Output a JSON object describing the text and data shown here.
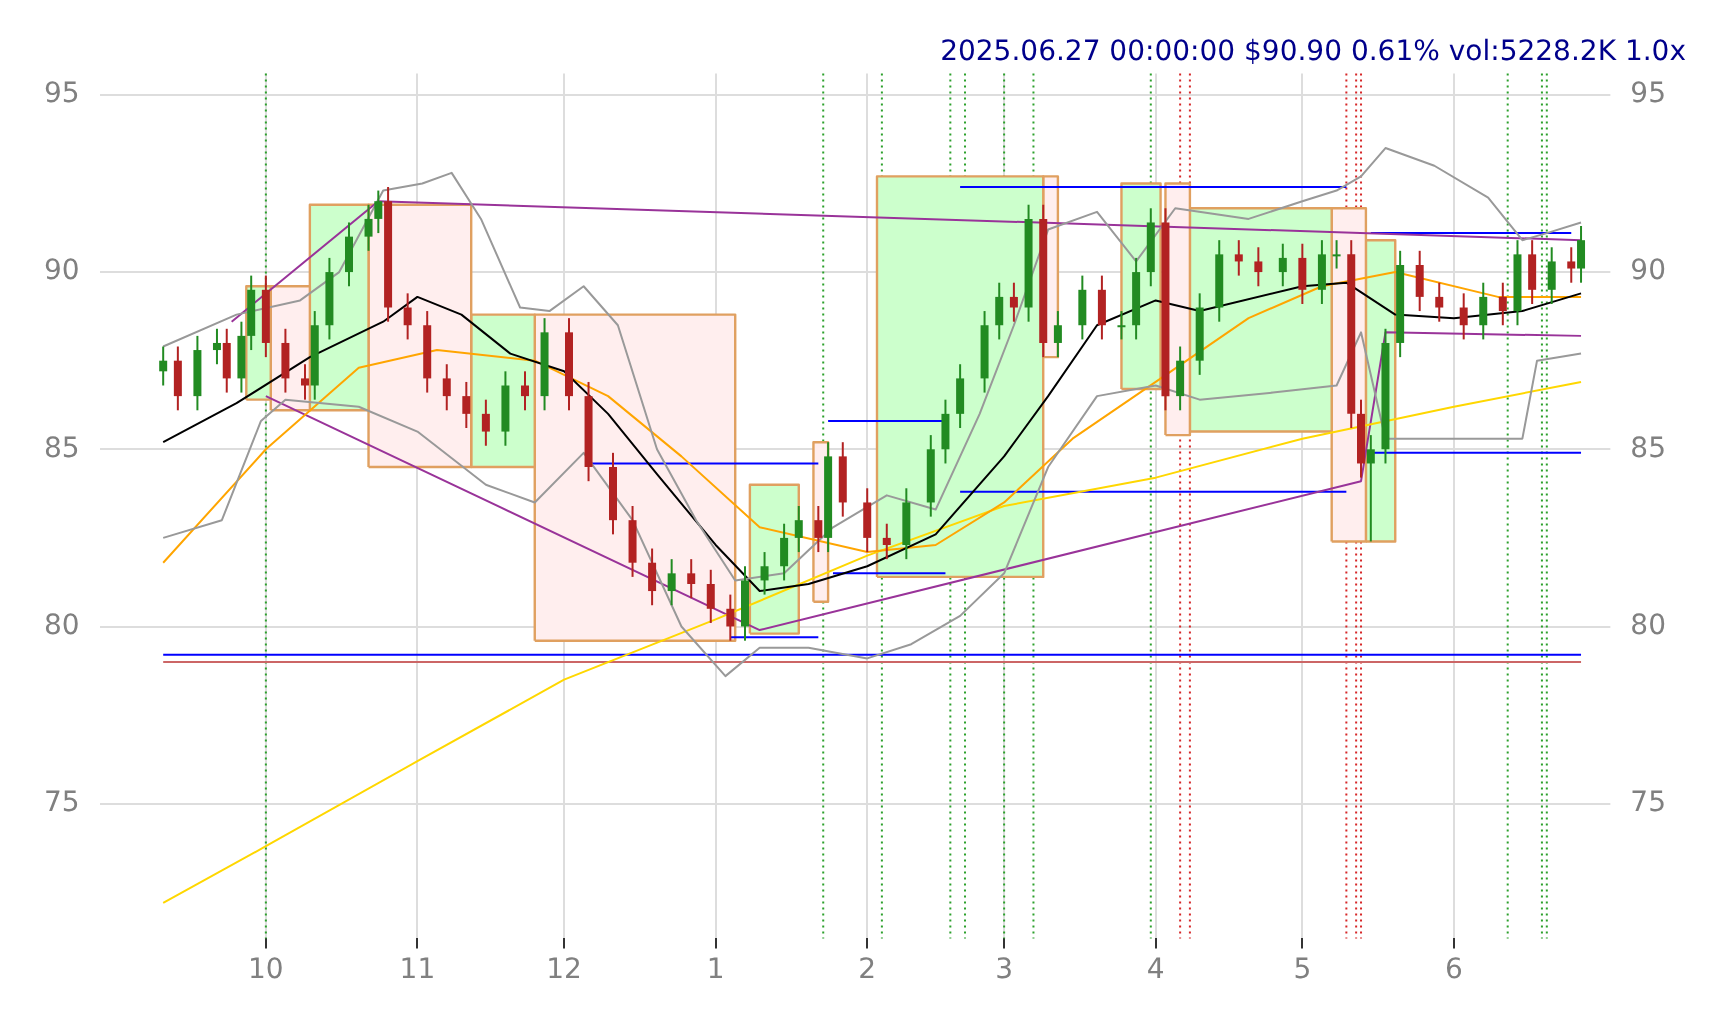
{
  "chart_data": {
    "type": "candlestick",
    "title": "2025.06.27 00:00:00 $90.90 0.61% vol:5228.2K 1.0x",
    "x": [
      "2024-09-10",
      "2024-09-13",
      "2024-09-17",
      "2024-09-21",
      "2024-09-23",
      "2024-09-26",
      "2024-09-28",
      "2024-10-01",
      "2024-10-05",
      "2024-10-09",
      "2024-10-11",
      "2024-10-14",
      "2024-10-18",
      "2024-10-22",
      "2024-10-24",
      "2024-10-26",
      "2024-10-30",
      "2024-11-03",
      "2024-11-07",
      "2024-11-11",
      "2024-11-15",
      "2024-11-19",
      "2024-11-23",
      "2024-11-27",
      "2024-12-02",
      "2024-12-06",
      "2024-12-11",
      "2024-12-15",
      "2024-12-19",
      "2024-12-23",
      "2024-12-27",
      "2024-12-31",
      "2025-01-04",
      "2025-01-07",
      "2025-01-11",
      "2025-01-15",
      "2025-01-18",
      "2025-01-22",
      "2025-01-24",
      "2025-01-27",
      "2025-02-01",
      "2025-02-05",
      "2025-02-09",
      "2025-02-14",
      "2025-02-17",
      "2025-02-20",
      "2025-02-25",
      "2025-02-28",
      "2025-03-03",
      "2025-03-06",
      "2025-03-09",
      "2025-03-12",
      "2025-03-17",
      "2025-03-21",
      "2025-03-25",
      "2025-03-28",
      "2025-03-31",
      "2025-04-03",
      "2025-04-06",
      "2025-04-10",
      "2025-04-14",
      "2025-04-18",
      "2025-04-22",
      "2025-04-27",
      "2025-05-01",
      "2025-05-05",
      "2025-05-08",
      "2025-05-11",
      "2025-05-13",
      "2025-05-15",
      "2025-05-18",
      "2025-05-21",
      "2025-05-25",
      "2025-05-29",
      "2025-06-03",
      "2025-06-07",
      "2025-06-11",
      "2025-06-14",
      "2025-06-17",
      "2025-06-21",
      "2025-06-25",
      "2025-06-27"
    ],
    "ohlc": [
      [
        87.2,
        87.9,
        86.8,
        87.5
      ],
      [
        87.5,
        87.9,
        86.1,
        86.5
      ],
      [
        86.5,
        88.2,
        86.1,
        87.8
      ],
      [
        87.8,
        88.4,
        87.4,
        88.0
      ],
      [
        88.0,
        88.4,
        86.6,
        87.0
      ],
      [
        87.0,
        88.6,
        86.6,
        88.2
      ],
      [
        88.2,
        89.9,
        87.8,
        89.5
      ],
      [
        89.5,
        89.9,
        87.6,
        88.0
      ],
      [
        88.0,
        88.4,
        86.6,
        87.0
      ],
      [
        87.0,
        87.4,
        86.4,
        86.8
      ],
      [
        86.8,
        88.9,
        86.4,
        88.5
      ],
      [
        88.5,
        90.4,
        88.1,
        90.0
      ],
      [
        90.0,
        91.4,
        89.6,
        91.0
      ],
      [
        91.0,
        91.9,
        90.6,
        91.5
      ],
      [
        91.5,
        92.3,
        91.1,
        92.0
      ],
      [
        92.0,
        92.4,
        88.6,
        89.0
      ],
      [
        89.0,
        89.4,
        88.1,
        88.5
      ],
      [
        88.5,
        88.9,
        86.6,
        87.0
      ],
      [
        87.0,
        87.4,
        86.1,
        86.5
      ],
      [
        86.5,
        86.9,
        85.6,
        86.0
      ],
      [
        86.0,
        86.4,
        85.1,
        85.5
      ],
      [
        85.5,
        87.2,
        85.1,
        86.8
      ],
      [
        86.8,
        87.2,
        86.1,
        86.5
      ],
      [
        86.5,
        88.7,
        86.1,
        88.3
      ],
      [
        88.3,
        88.7,
        86.1,
        86.5
      ],
      [
        86.5,
        86.9,
        84.1,
        84.5
      ],
      [
        84.5,
        84.9,
        82.6,
        83.0
      ],
      [
        83.0,
        83.4,
        81.4,
        81.8
      ],
      [
        81.8,
        82.2,
        80.6,
        81.0
      ],
      [
        81.0,
        81.9,
        80.6,
        81.5
      ],
      [
        81.5,
        81.9,
        80.8,
        81.2
      ],
      [
        81.2,
        81.6,
        80.1,
        80.5
      ],
      [
        80.5,
        80.9,
        79.6,
        80.0
      ],
      [
        80.0,
        81.7,
        79.6,
        81.3
      ],
      [
        81.3,
        82.1,
        80.9,
        81.7
      ],
      [
        81.7,
        82.9,
        81.3,
        82.5
      ],
      [
        82.5,
        83.4,
        82.1,
        83.0
      ],
      [
        83.0,
        83.4,
        82.1,
        82.5
      ],
      [
        82.5,
        85.2,
        82.1,
        84.8
      ],
      [
        84.8,
        85.2,
        83.1,
        83.5
      ],
      [
        83.5,
        83.9,
        82.1,
        82.5
      ],
      [
        82.5,
        82.9,
        81.9,
        82.3
      ],
      [
        82.3,
        83.9,
        81.9,
        83.5
      ],
      [
        83.5,
        85.4,
        83.1,
        85.0
      ],
      [
        85.0,
        86.4,
        84.6,
        86.0
      ],
      [
        86.0,
        87.4,
        85.6,
        87.0
      ],
      [
        87.0,
        88.9,
        86.6,
        88.5
      ],
      [
        88.5,
        89.7,
        88.1,
        89.3
      ],
      [
        89.3,
        89.7,
        88.6,
        89.0
      ],
      [
        89.0,
        91.9,
        88.6,
        91.5
      ],
      [
        91.5,
        91.9,
        87.6,
        88.0
      ],
      [
        88.0,
        88.9,
        87.6,
        88.5
      ],
      [
        88.5,
        89.9,
        88.1,
        89.5
      ],
      [
        89.5,
        89.9,
        88.1,
        88.5
      ],
      [
        88.5,
        88.9,
        88.1,
        88.5
      ],
      [
        88.5,
        90.4,
        88.1,
        90.0
      ],
      [
        90.0,
        91.8,
        89.6,
        91.4
      ],
      [
        91.4,
        91.8,
        86.1,
        86.5
      ],
      [
        86.5,
        87.9,
        86.1,
        87.5
      ],
      [
        87.5,
        89.4,
        87.1,
        89.0
      ],
      [
        89.0,
        90.9,
        88.6,
        90.5
      ],
      [
        90.5,
        90.9,
        89.9,
        90.3
      ],
      [
        90.3,
        90.7,
        89.6,
        90.0
      ],
      [
        90.0,
        90.8,
        89.6,
        90.4
      ],
      [
        90.4,
        90.8,
        89.1,
        89.5
      ],
      [
        89.5,
        90.9,
        89.1,
        90.5
      ],
      [
        90.5,
        90.9,
        90.1,
        90.5
      ],
      [
        90.5,
        90.9,
        85.6,
        86.0
      ],
      [
        86.0,
        86.4,
        84.2,
        84.6
      ],
      [
        84.6,
        85.4,
        82.4,
        85.0
      ],
      [
        85.0,
        88.4,
        84.6,
        88.0
      ],
      [
        88.0,
        90.6,
        87.6,
        90.2
      ],
      [
        90.2,
        90.6,
        88.9,
        89.3
      ],
      [
        89.3,
        89.7,
        88.6,
        89.0
      ],
      [
        89.0,
        89.4,
        88.1,
        88.5
      ],
      [
        88.5,
        89.7,
        88.1,
        89.3
      ],
      [
        89.3,
        89.7,
        88.5,
        88.9
      ],
      [
        88.9,
        90.9,
        88.5,
        90.5
      ],
      [
        90.5,
        90.9,
        89.1,
        89.5
      ],
      [
        89.5,
        90.7,
        89.1,
        90.3
      ],
      [
        90.3,
        90.7,
        89.7,
        90.1
      ],
      [
        90.1,
        91.3,
        89.7,
        90.9
      ]
    ],
    "series": [
      {
        "type": "area",
        "color": "#ccffcc",
        "x": [
          "2024-09-27",
          "2024-09-27",
          "2024-10-02",
          "2024-10-02",
          "2024-09-27"
        ],
        "values": [
          86.4,
          89.6,
          89.6,
          86.4,
          86.4
        ]
      },
      {
        "type": "area",
        "color": "#ffeeee",
        "x": [
          "2024-10-02",
          "2024-10-02",
          "2024-10-10",
          "2024-10-10",
          "2024-10-02"
        ],
        "values": [
          86.1,
          89.6,
          89.6,
          86.1,
          86.1
        ]
      },
      {
        "type": "area",
        "color": "#ccffcc",
        "x": [
          "2024-10-10",
          "2024-10-10",
          "2024-10-22",
          "2024-10-22",
          "2024-10-10"
        ],
        "values": [
          86.1,
          91.9,
          91.9,
          86.1,
          86.1
        ]
      },
      {
        "type": "area",
        "color": "#ffeeee",
        "x": [
          "2024-10-22",
          "2024-10-22",
          "2024-11-12",
          "2024-11-12",
          "2024-10-22"
        ],
        "values": [
          84.5,
          91.9,
          91.9,
          84.5,
          84.5
        ]
      },
      {
        "type": "area",
        "color": "#ccffcc",
        "x": [
          "2024-11-12",
          "2024-11-12",
          "2024-11-25",
          "2024-11-25",
          "2024-11-12"
        ],
        "values": [
          84.5,
          88.8,
          88.8,
          84.5,
          84.5
        ]
      },
      {
        "type": "area",
        "color": "#ffeeee",
        "x": [
          "2024-11-25",
          "2024-11-25",
          "2025-01-05",
          "2025-01-05",
          "2024-11-25"
        ],
        "values": [
          79.6,
          88.8,
          88.8,
          79.6,
          79.6
        ]
      },
      {
        "type": "area",
        "color": "#ccffcc",
        "x": [
          "2025-01-08",
          "2025-01-08",
          "2025-01-18",
          "2025-01-18",
          "2025-01-08"
        ],
        "values": [
          79.8,
          84.0,
          84.0,
          79.8,
          79.8
        ]
      },
      {
        "type": "area",
        "color": "#ffeeee",
        "x": [
          "2025-01-21",
          "2025-01-21",
          "2025-01-24",
          "2025-01-24",
          "2025-01-21"
        ],
        "values": [
          80.7,
          85.2,
          85.2,
          80.7,
          80.7
        ]
      },
      {
        "type": "area",
        "color": "#ccffcc",
        "x": [
          "2025-02-03",
          "2025-02-03",
          "2025-03-09",
          "2025-03-09",
          "2025-02-03"
        ],
        "values": [
          81.4,
          92.7,
          92.7,
          81.4,
          81.4
        ]
      },
      {
        "type": "area",
        "color": "#ffeeee",
        "x": [
          "2025-03-09",
          "2025-03-09",
          "2025-03-12",
          "2025-03-12",
          "2025-03-09"
        ],
        "values": [
          87.6,
          92.7,
          92.7,
          87.6,
          87.6
        ]
      },
      {
        "type": "area",
        "color": "#ccffcc",
        "x": [
          "2025-03-25",
          "2025-03-25",
          "2025-04-02",
          "2025-04-02",
          "2025-03-25"
        ],
        "values": [
          86.7,
          92.5,
          92.5,
          86.7,
          86.7
        ]
      },
      {
        "type": "area",
        "color": "#ffeeee",
        "x": [
          "2025-04-03",
          "2025-04-03",
          "2025-04-08",
          "2025-04-08",
          "2025-04-03"
        ],
        "values": [
          85.4,
          92.5,
          92.5,
          85.4,
          85.4
        ]
      },
      {
        "type": "area",
        "color": "#ccffcc",
        "x": [
          "2025-04-08",
          "2025-04-08",
          "2025-05-07",
          "2025-05-07",
          "2025-04-08"
        ],
        "values": [
          85.5,
          91.8,
          91.8,
          85.5,
          85.5
        ]
      },
      {
        "type": "area",
        "color": "#ffeeee",
        "x": [
          "2025-05-07",
          "2025-05-07",
          "2025-05-14",
          "2025-05-14",
          "2025-05-07"
        ],
        "values": [
          82.4,
          91.8,
          91.8,
          82.4,
          82.4
        ]
      },
      {
        "type": "area",
        "color": "#ccffcc",
        "x": [
          "2025-05-14",
          "2025-05-14",
          "2025-05-20",
          "2025-05-20",
          "2025-05-14"
        ],
        "values": [
          82.4,
          90.9,
          90.9,
          82.4,
          82.4
        ]
      },
      {
        "type": "line",
        "color": "#999999",
        "x": [
          "2024-09-10",
          "2024-09-25",
          "2024-10-08",
          "2024-10-16",
          "2024-10-25",
          "2024-11-02",
          "2024-11-08",
          "2024-11-14",
          "2024-11-22",
          "2024-11-28",
          "2024-12-05",
          "2024-12-12",
          "2024-12-20",
          "2024-12-28",
          "2025-01-05",
          "2025-01-15",
          "2025-01-25",
          "2025-02-05",
          "2025-02-15",
          "2025-02-24",
          "2025-03-03",
          "2025-03-10",
          "2025-03-20",
          "2025-03-28",
          "2025-04-05",
          "2025-04-20",
          "2025-05-01",
          "2025-05-08",
          "2025-05-13",
          "2025-05-18",
          "2025-05-28",
          "2025-06-08",
          "2025-06-15",
          "2025-06-20",
          "2025-06-27"
        ],
        "values": [
          87.9,
          88.8,
          89.2,
          90,
          92.3,
          92.5,
          92.8,
          91.5,
          89,
          88.9,
          89.6,
          88.5,
          85,
          83,
          81.3,
          81.5,
          82.8,
          83.7,
          83.3,
          86,
          88.5,
          91.2,
          91.7,
          90.3,
          91.8,
          91.5,
          92,
          92.3,
          92.7,
          93.5,
          93,
          92.1,
          90.9,
          91.1,
          91.4
        ]
      },
      {
        "type": "line",
        "color": "#999999",
        "x": [
          "2024-09-10",
          "2024-09-22",
          "2024-09-30",
          "2024-10-05",
          "2024-10-20",
          "2024-11-01",
          "2024-11-15",
          "2024-11-25",
          "2024-12-05",
          "2024-12-15",
          "2024-12-25",
          "2025-01-03",
          "2025-01-10",
          "2025-01-20",
          "2025-02-01",
          "2025-02-10",
          "2025-02-20",
          "2025-03-01",
          "2025-03-10",
          "2025-03-20",
          "2025-04-01",
          "2025-04-10",
          "2025-04-25",
          "2025-05-08",
          "2025-05-13",
          "2025-05-18",
          "2025-06-05",
          "2025-06-15",
          "2025-06-18",
          "2025-06-27"
        ],
        "values": [
          82.5,
          83,
          85.8,
          86.4,
          86.2,
          85.5,
          84,
          83.5,
          84.9,
          83,
          80,
          78.6,
          79.4,
          79.4,
          79.1,
          79.5,
          80.3,
          81.5,
          84.5,
          86.5,
          86.8,
          86.4,
          86.6,
          86.8,
          88.3,
          85.3,
          85.3,
          85.3,
          87.5,
          87.7
        ]
      },
      {
        "type": "line",
        "color": "#000000",
        "x": [
          "2024-09-10",
          "2024-09-25",
          "2024-10-10",
          "2024-10-25",
          "2024-11-01",
          "2024-11-10",
          "2024-11-20",
          "2024-12-01",
          "2024-12-10",
          "2024-12-20",
          "2025-01-01",
          "2025-01-10",
          "2025-01-20",
          "2025-02-01",
          "2025-02-15",
          "2025-03-01",
          "2025-03-10",
          "2025-03-20",
          "2025-04-01",
          "2025-04-10",
          "2025-05-01",
          "2025-05-10",
          "2025-05-20",
          "2025-06-01",
          "2025-06-15",
          "2025-06-27"
        ],
        "values": [
          85.2,
          86.3,
          87.6,
          88.6,
          89.3,
          88.8,
          87.7,
          87.2,
          86,
          84.3,
          82.3,
          81,
          81.2,
          81.7,
          82.6,
          84.8,
          86.5,
          88.5,
          89.2,
          88.9,
          89.6,
          89.7,
          88.8,
          88.7,
          88.9,
          89.4
        ]
      },
      {
        "type": "line",
        "color": "#ffa500",
        "x": [
          "2024-09-10",
          "2024-10-01",
          "2024-10-20",
          "2024-11-05",
          "2024-11-25",
          "2024-12-10",
          "2024-12-25",
          "2025-01-10",
          "2025-02-01",
          "2025-02-15",
          "2025-03-01",
          "2025-03-15",
          "2025-04-01",
          "2025-04-20",
          "2025-05-05",
          "2025-05-20",
          "2025-06-10",
          "2025-06-27"
        ],
        "values": [
          81.8,
          85,
          87.3,
          87.8,
          87.5,
          86.5,
          84.8,
          82.8,
          82.1,
          82.3,
          83.5,
          85.3,
          86.9,
          88.7,
          89.6,
          90,
          89.3,
          89.3
        ]
      },
      {
        "type": "line",
        "color": "#ffd700",
        "x": [
          "2024-09-10",
          "2024-10-01",
          "2024-11-01",
          "2024-12-01",
          "2025-01-01",
          "2025-02-01",
          "2025-03-01",
          "2025-04-01",
          "2025-05-01",
          "2025-06-01",
          "2025-06-27"
        ],
        "values": [
          72.2,
          73.8,
          76.2,
          78.5,
          80.2,
          82,
          83.4,
          84.2,
          85.3,
          86.2,
          86.9
        ]
      },
      {
        "type": "line",
        "color": "#993399",
        "x": [
          "2024-09-24",
          "2024-10-24",
          "2025-06-27"
        ],
        "values": [
          88.6,
          92,
          90.9
        ]
      },
      {
        "type": "line",
        "color": "#993399",
        "x": [
          "2024-10-01",
          "2025-01-10",
          "2025-05-13",
          "2025-05-18",
          "2025-06-27"
        ],
        "values": [
          86.5,
          79.9,
          84.1,
          88.3,
          88.2
        ]
      },
      {
        "type": "line",
        "color": "#0000ff",
        "x": [
          "2024-12-06",
          "2025-01-22"
        ],
        "values": [
          84.6,
          84.6
        ]
      },
      {
        "type": "line",
        "color": "#0000ff",
        "x": [
          "2025-01-04",
          "2025-01-22"
        ],
        "values": [
          79.7,
          79.7
        ]
      },
      {
        "type": "line",
        "color": "#0000ff",
        "x": [
          "2025-01-25",
          "2025-02-17"
        ],
        "values": [
          81.5,
          81.5
        ]
      },
      {
        "type": "line",
        "color": "#0000ff",
        "x": [
          "2025-01-24",
          "2025-02-17"
        ],
        "values": [
          85.8,
          85.8
        ]
      },
      {
        "type": "line",
        "color": "#0000ff",
        "x": [
          "2025-02-20",
          "2025-05-10"
        ],
        "values": [
          92.4,
          92.4
        ]
      },
      {
        "type": "line",
        "color": "#0000ff",
        "x": [
          "2025-02-20",
          "2025-05-10"
        ],
        "values": [
          83.8,
          83.8
        ]
      },
      {
        "type": "line",
        "color": "#0000ff",
        "x": [
          "2025-05-15",
          "2025-06-27"
        ],
        "values": [
          84.9,
          84.9
        ]
      },
      {
        "type": "line",
        "color": "#0000ff",
        "x": [
          "2025-05-15",
          "2025-06-25"
        ],
        "values": [
          91.1,
          91.1
        ]
      },
      {
        "type": "line",
        "color": "#0000ff",
        "x": [
          "2024-09-10",
          "2025-06-27"
        ],
        "values": [
          79.2,
          79.2
        ]
      },
      {
        "type": "line",
        "color": "#cc6666",
        "x": [
          "2024-09-10",
          "2025-06-27"
        ],
        "values": [
          79.0,
          79.0
        ]
      }
    ],
    "ref_lines": [
      {
        "axis": "x",
        "value": "2024-10-01",
        "color": "#2ca02c",
        "line_style": "dotted"
      },
      {
        "axis": "x",
        "value": "2025-01-23",
        "color": "#2ca02c",
        "line_style": "dotted"
      },
      {
        "axis": "x",
        "value": "2025-02-04",
        "color": "#2ca02c",
        "line_style": "dotted"
      },
      {
        "axis": "x",
        "value": "2025-02-18",
        "color": "#2ca02c",
        "line_style": "dotted"
      },
      {
        "axis": "x",
        "value": "2025-02-21",
        "color": "#2ca02c",
        "line_style": "dotted"
      },
      {
        "axis": "x",
        "value": "2025-03-01",
        "color": "#2ca02c",
        "line_style": "dotted"
      },
      {
        "axis": "x",
        "value": "2025-03-07",
        "color": "#2ca02c",
        "line_style": "dotted"
      },
      {
        "axis": "x",
        "value": "2025-03-31",
        "color": "#2ca02c",
        "line_style": "dotted"
      },
      {
        "axis": "x",
        "value": "2025-04-06",
        "color": "#d62728",
        "line_style": "dotted"
      },
      {
        "axis": "x",
        "value": "2025-04-08",
        "color": "#d62728",
        "line_style": "dotted"
      },
      {
        "axis": "x",
        "value": "2025-05-10",
        "color": "#d62728",
        "line_style": "dotted"
      },
      {
        "axis": "x",
        "value": "2025-05-12",
        "color": "#d62728",
        "line_style": "dotted"
      },
      {
        "axis": "x",
        "value": "2025-05-13",
        "color": "#d62728",
        "line_style": "dotted"
      },
      {
        "axis": "x",
        "value": "2025-06-12",
        "color": "#2ca02c",
        "line_style": "dotted"
      },
      {
        "axis": "x",
        "value": "2025-06-19",
        "color": "#2ca02c",
        "line_style": "dotted"
      },
      {
        "axis": "x",
        "value": "2025-06-20",
        "color": "#2ca02c",
        "line_style": "dotted"
      }
    ],
    "xlim": [
      "2024-08-28",
      "2025-07-03"
    ],
    "xticks": [
      {
        "value": "2024-10-01",
        "label": "10"
      },
      {
        "value": "2024-11-01",
        "label": "11"
      },
      {
        "value": "2024-12-01",
        "label": "12"
      },
      {
        "value": "2025-01-01",
        "label": "1"
      },
      {
        "value": "2025-02-01",
        "label": "2"
      },
      {
        "value": "2025-03-01",
        "label": "3"
      },
      {
        "value": "2025-04-01",
        "label": "4"
      },
      {
        "value": "2025-05-01",
        "label": "5"
      },
      {
        "value": "2025-06-01",
        "label": "6"
      }
    ],
    "ylim": [
      71.2,
      95.6
    ],
    "yticks": [
      75,
      80,
      85,
      90,
      95
    ],
    "y2lim": [
      71.2,
      95.6
    ],
    "y2ticks": [
      75,
      80,
      85,
      90,
      95
    ],
    "grid": true,
    "legend": false
  }
}
